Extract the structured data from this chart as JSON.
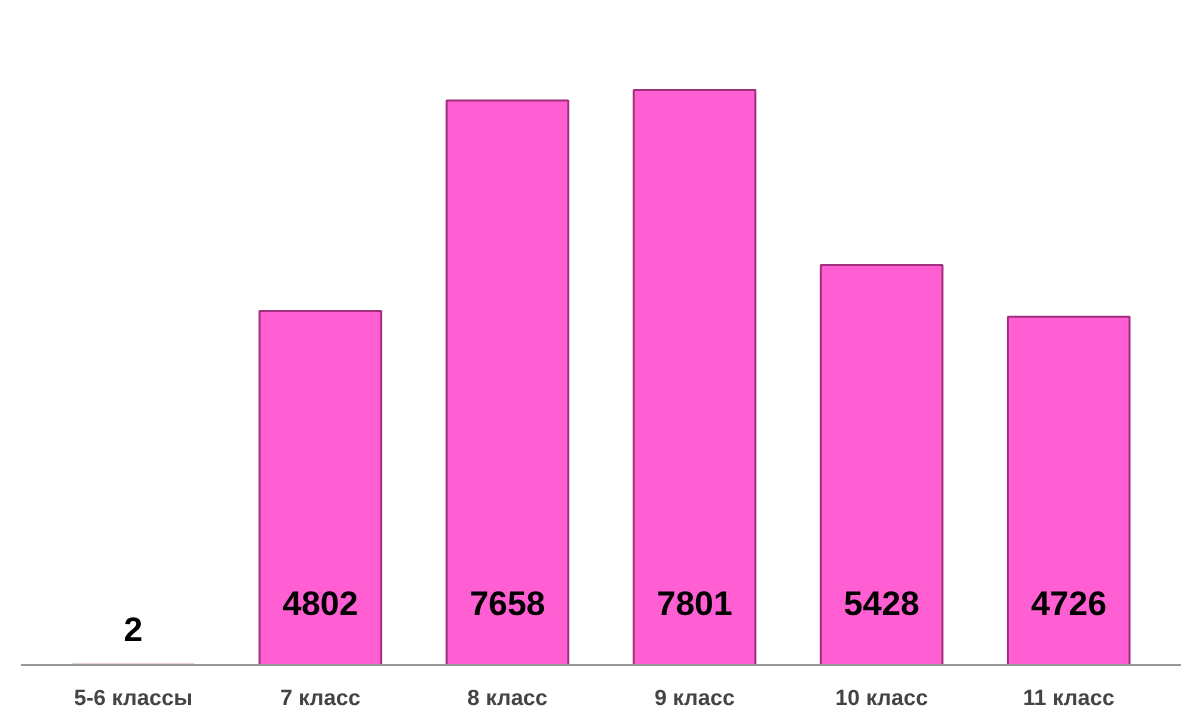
{
  "chart_data": {
    "type": "bar",
    "categories": [
      "5-6 классы",
      "7 класс",
      "8 класс",
      "9 класс",
      "10 класс",
      "11 класс"
    ],
    "values": [
      2,
      4802,
      7658,
      7801,
      5428,
      4726
    ],
    "color": "#ff5fd2",
    "data_labels": true
  }
}
